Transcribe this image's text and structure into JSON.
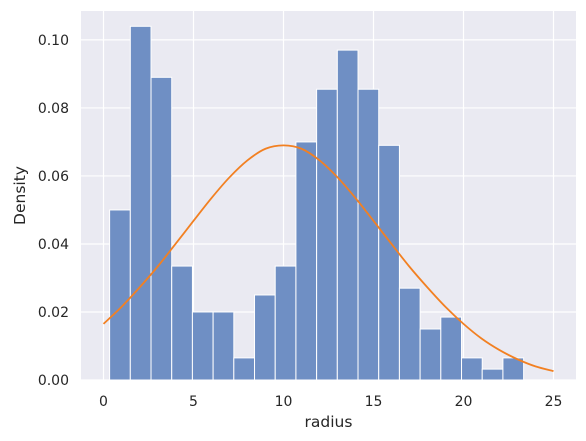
{
  "chart_data": {
    "type": "bar",
    "xlabel": "radius",
    "ylabel": "Density",
    "xlim": [
      -1.25,
      26.25
    ],
    "ylim": [
      0,
      0.1085
    ],
    "xticks": [
      0,
      5,
      10,
      15,
      20,
      25
    ],
    "yticks": [
      0.0,
      0.02,
      0.04,
      0.06,
      0.08,
      0.1
    ],
    "ytick_labels": [
      "0.00",
      "0.02",
      "0.04",
      "0.06",
      "0.08",
      "0.10"
    ],
    "grid": true,
    "background": "#eaeaf2",
    "bar_color": "#6f8fc4",
    "bar_edge_color": "#ffffff",
    "line_color": "#f28022",
    "bins": {
      "start": 0.34,
      "width": 1.15,
      "values": [
        0.05,
        0.104,
        0.089,
        0.0335,
        0.02,
        0.02,
        0.0065,
        0.025,
        0.0335,
        0.07,
        0.0855,
        0.097,
        0.0855,
        0.069,
        0.027,
        0.015,
        0.0185,
        0.0065,
        0.0032,
        0.0065
      ]
    },
    "density_curve": {
      "x": [
        0,
        1,
        2,
        3,
        4,
        5,
        6,
        7,
        8,
        9,
        10,
        11,
        12,
        13,
        14,
        15,
        16,
        17,
        18,
        19,
        20,
        21,
        22,
        23,
        24,
        25
      ],
      "y": [
        0.0165,
        0.0215,
        0.0272,
        0.0333,
        0.04,
        0.0468,
        0.0535,
        0.0596,
        0.0646,
        0.068,
        0.069,
        0.068,
        0.0646,
        0.0596,
        0.0535,
        0.0468,
        0.04,
        0.0333,
        0.0272,
        0.0215,
        0.0165,
        0.0122,
        0.0088,
        0.0061,
        0.004,
        0.0026
      ]
    }
  }
}
